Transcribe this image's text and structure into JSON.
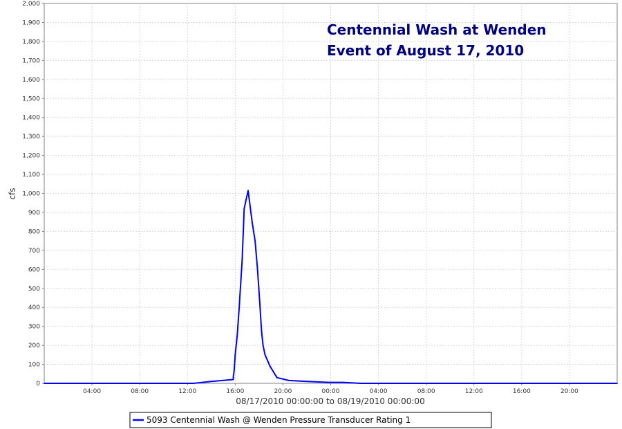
{
  "chart_data": {
    "type": "line",
    "title_lines": [
      "Centennial Wash at Wenden",
      "Event of August 17, 2010"
    ],
    "xlabel": "08/17/2010 00:00:00 to 08/19/2010 00:00:00",
    "ylabel": "cfs",
    "xlim": [
      "08/17/2010 00:00",
      "08/19/2010 00:00"
    ],
    "ylim": [
      0,
      2000
    ],
    "grid": true,
    "legend_placement": "bottom",
    "x_ticks": [
      "04:00",
      "08:00",
      "12:00",
      "16:00",
      "20:00",
      "00:00",
      "04:00",
      "08:00",
      "12:00",
      "16:00",
      "20:00"
    ],
    "y_ticks": [
      "0",
      "100",
      "200",
      "300",
      "400",
      "500",
      "600",
      "700",
      "800",
      "900",
      "1,000",
      "1,100",
      "1,200",
      "1,300",
      "1,400",
      "1,500",
      "1,600",
      "1,700",
      "1,800",
      "1,900",
      "2,000"
    ],
    "series": [
      {
        "name": "5093 Centennial Wash @ Wenden Pressure Transducer Rating 1",
        "color": "#0000ff",
        "x": [
          "08/17/2010 00:00",
          "08/17/2010 12:30",
          "08/17/2010 14:00",
          "08/17/2010 15:50",
          "08/17/2010 15:51",
          "08/17/2010 15:55",
          "08/17/2010 16:00",
          "08/17/2010 16:10",
          "08/17/2010 16:20",
          "08/17/2010 16:35",
          "08/17/2010 16:45",
          "08/17/2010 17:05",
          "08/17/2010 17:25",
          "08/17/2010 17:40",
          "08/17/2010 17:52",
          "08/17/2010 18:05",
          "08/17/2010 18:12",
          "08/17/2010 18:20",
          "08/17/2010 18:30",
          "08/17/2010 18:55",
          "08/17/2010 19:30",
          "08/17/2010 20:30",
          "08/17/2010 22:00",
          "08/17/2010 23:50",
          "08/18/2010 01:00",
          "08/18/2010 02:30",
          "08/19/2010 00:00"
        ],
        "y": [
          0,
          0,
          10,
          20,
          40,
          70,
          150,
          250,
          400,
          650,
          920,
          1015,
          850,
          750,
          600,
          400,
          280,
          200,
          150,
          90,
          30,
          15,
          10,
          5,
          5,
          0,
          0
        ]
      }
    ]
  },
  "legend": {
    "label": "5093 Centennial Wash @ Wenden Pressure Transducer Rating 1"
  },
  "colors": {
    "series_line": "#0000ff",
    "title": "#000080",
    "grid": "#d9d9d9",
    "axis": "#808080"
  }
}
